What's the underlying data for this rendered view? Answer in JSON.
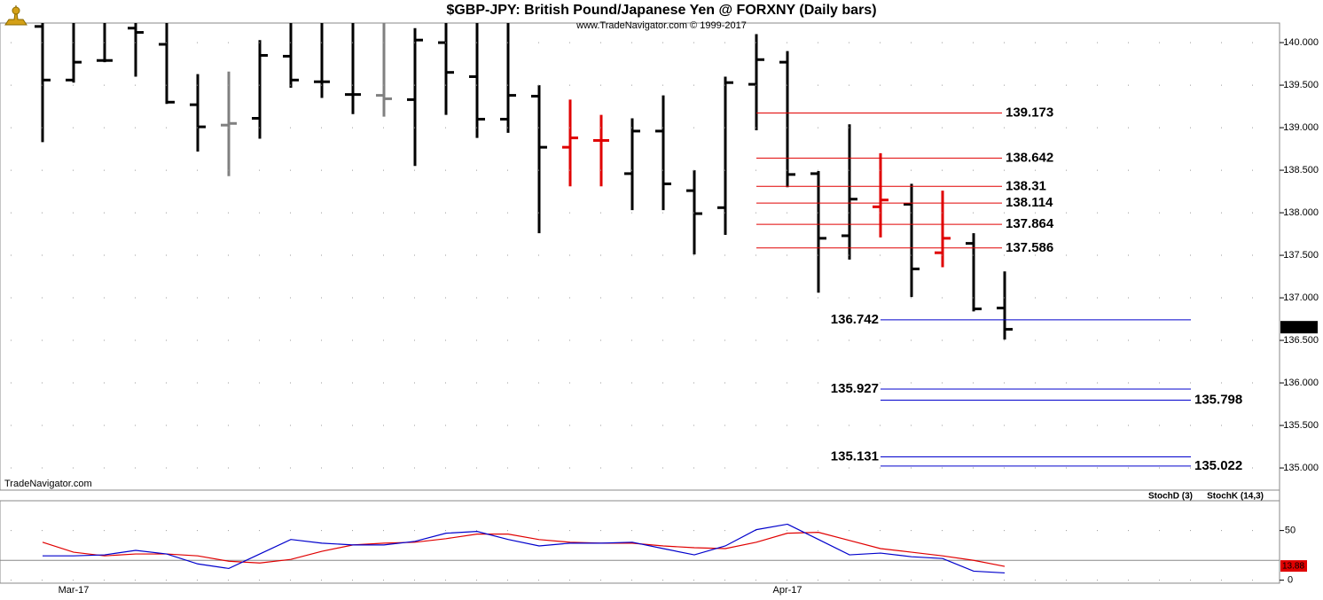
{
  "chart_data": [
    {
      "type": "ohlc",
      "title": "$GBP-JPY:  British Pound/Japanese Yen @ FORXNY  (Daily bars)",
      "subtitle": "www.TradeNavigator.com © 1999-2017",
      "watermark": "TradeNavigator.com",
      "categories": [
        null,
        "Mar-17",
        null,
        null,
        null,
        null,
        null,
        null,
        null,
        null,
        null,
        null,
        null,
        null,
        null,
        null,
        null,
        null,
        null,
        null,
        null,
        null,
        null,
        null,
        "Apr-17",
        null,
        null,
        null,
        null,
        null,
        null,
        null
      ],
      "open": [
        140.19,
        139.56,
        139.79,
        140.17,
        139.98,
        139.27,
        139.03,
        139.11,
        139.84,
        139.54,
        139.39,
        139.38,
        139.33,
        140.0,
        139.6,
        139.1,
        139.37,
        138.77,
        138.85,
        138.46,
        138.96,
        138.26,
        138.06,
        139.51,
        139.77,
        138.46,
        137.73,
        138.07,
        138.1,
        137.53,
        137.64,
        136.88
      ],
      "high": [
        140.3,
        140.3,
        140.3,
        140.3,
        140.3,
        139.63,
        139.66,
        140.03,
        140.3,
        140.3,
        140.3,
        140.3,
        140.17,
        140.3,
        140.3,
        140.3,
        139.5,
        139.33,
        139.15,
        139.11,
        139.38,
        138.5,
        139.6,
        140.1,
        139.9,
        138.49,
        139.04,
        138.7,
        138.34,
        138.26,
        137.76,
        137.31
      ],
      "low": [
        138.83,
        139.53,
        139.77,
        139.6,
        139.28,
        138.72,
        138.43,
        138.87,
        139.47,
        139.35,
        139.16,
        139.13,
        138.55,
        139.15,
        138.88,
        138.94,
        137.76,
        138.31,
        138.31,
        138.03,
        138.03,
        137.51,
        137.74,
        138.97,
        138.3,
        137.06,
        137.45,
        137.71,
        137.01,
        137.36,
        136.84,
        136.51
      ],
      "close": [
        139.56,
        139.77,
        139.79,
        140.12,
        139.3,
        139.01,
        139.05,
        139.85,
        139.56,
        139.54,
        139.39,
        139.34,
        140.03,
        139.65,
        139.1,
        139.38,
        138.77,
        138.88,
        138.85,
        138.96,
        138.34,
        137.99,
        139.53,
        139.8,
        138.45,
        137.7,
        138.16,
        138.15,
        137.34,
        137.7,
        136.87,
        136.63
      ],
      "bar_colors": [
        "#000000",
        "#000000",
        "#000000",
        "#000000",
        "#000000",
        "#000000",
        "#808080",
        "#000000",
        "#000000",
        "#000000",
        "#000000",
        "#808080",
        "#000000",
        "#000000",
        "#000000",
        "#000000",
        "#000000",
        "#e00000",
        "#e00000",
        "#000000",
        "#000000",
        "#000000",
        "#000000",
        "#000000",
        "#000000",
        "#000000",
        "#000000",
        "#e00000",
        "#000000",
        "#e00000",
        "#000000",
        "#000000"
      ],
      "ylim": [
        134.74,
        140.23
      ],
      "yticks": [
        {
          "value": 135,
          "label": "135.000"
        },
        {
          "value": 135.5,
          "label": "135.500"
        },
        {
          "value": 136,
          "label": "136.000"
        },
        {
          "value": 136.5,
          "label": "136.500"
        },
        {
          "value": 137,
          "label": "137.000"
        },
        {
          "value": 137.5,
          "label": "137.500"
        },
        {
          "value": 138,
          "label": "138.000"
        },
        {
          "value": 138.5,
          "label": "138.500"
        },
        {
          "value": 139,
          "label": "139.000"
        },
        {
          "value": 139.5,
          "label": "139.500"
        },
        {
          "value": 140,
          "label": "140.000"
        }
      ],
      "grid": true,
      "last_price": 136.655,
      "levels": [
        {
          "value": 139.173,
          "color": "#e00000",
          "label_side": "right"
        },
        {
          "value": 138.642,
          "color": "#e00000",
          "label_side": "right"
        },
        {
          "value": 138.31,
          "color": "#e00000",
          "label_side": "right"
        },
        {
          "value": 138.114,
          "color": "#e00000",
          "label_side": "right"
        },
        {
          "value": 137.864,
          "color": "#e00000",
          "label_side": "right"
        },
        {
          "value": 137.586,
          "color": "#e00000",
          "label_side": "right"
        },
        {
          "value": 136.742,
          "color": "#0000cc",
          "label_side": "left"
        },
        {
          "value": 135.927,
          "color": "#0000cc",
          "label_side": "left"
        },
        {
          "value": 135.798,
          "color": "#0000cc",
          "label_side": "right"
        },
        {
          "value": 135.131,
          "color": "#0000cc",
          "label_side": "left"
        },
        {
          "value": 135.022,
          "color": "#0000cc",
          "label_side": "right"
        }
      ]
    },
    {
      "type": "line",
      "series": [
        {
          "name": "StochD (3)",
          "color": "#e00000",
          "values": [
            38.2,
            28.2,
            24.5,
            26.4,
            26.4,
            24.5,
            19.1,
            17.3,
            20.9,
            29.1,
            35.5,
            37.3,
            38.2,
            41.8,
            46.4,
            46.4,
            40.9,
            38.2,
            37.3,
            37.3,
            34.5,
            32.7,
            31.8,
            38.2,
            47.3,
            48.2,
            40,
            31.8,
            28.2,
            24.5,
            20,
            13.88
          ]
        },
        {
          "name": "StochK (14,3)",
          "color": "#0000cc",
          "values": [
            24.5,
            24.5,
            25.5,
            30,
            26.4,
            16.4,
            11.8,
            26.4,
            41,
            37.3,
            35.5,
            35.5,
            39.1,
            47.3,
            49.1,
            41,
            34.5,
            37.3,
            37.3,
            38.2,
            31.8,
            25.5,
            34.5,
            50.9,
            56.4,
            41,
            25.5,
            27.3,
            23.6,
            21.8,
            9.1,
            7.3
          ]
        }
      ],
      "ylim": [
        -3,
        80
      ],
      "yticks": [
        0,
        50
      ],
      "reference_line": 20
    }
  ]
}
